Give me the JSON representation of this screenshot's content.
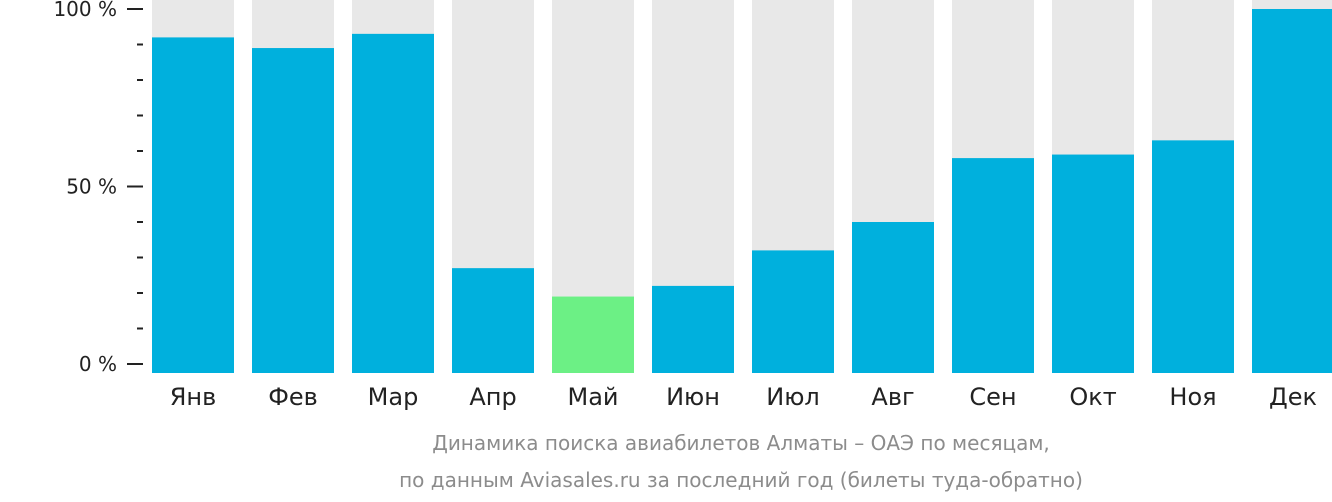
{
  "chart_data": {
    "type": "bar",
    "categories": [
      "Янв",
      "Фев",
      "Мар",
      "Апр",
      "Май",
      "Июн",
      "Июл",
      "Авг",
      "Сен",
      "Окт",
      "Ноя",
      "Дек"
    ],
    "values": [
      92,
      89,
      93,
      27,
      19,
      22,
      32,
      40,
      58,
      59,
      63,
      100
    ],
    "ylim": [
      0,
      100
    ],
    "yticks": [
      {
        "value": 0,
        "label": "0 %"
      },
      {
        "value": 50,
        "label": "50 %"
      },
      {
        "value": 100,
        "label": "100 %"
      }
    ],
    "minor_tick_step": 10,
    "highlight_index": 4,
    "colors": {
      "bar": "#00b0dd",
      "highlight": "#6cf085",
      "background_bar": "#e8e8e8",
      "axis": "#222222",
      "caption": "#8c8c8c"
    },
    "caption": [
      "Динамика поиска авиабилетов Алматы – ОАЭ по месяцам,",
      "по данным Aviasales.ru за последний год (билеты туда-обратно)"
    ],
    "grid": false,
    "legend": "none"
  }
}
